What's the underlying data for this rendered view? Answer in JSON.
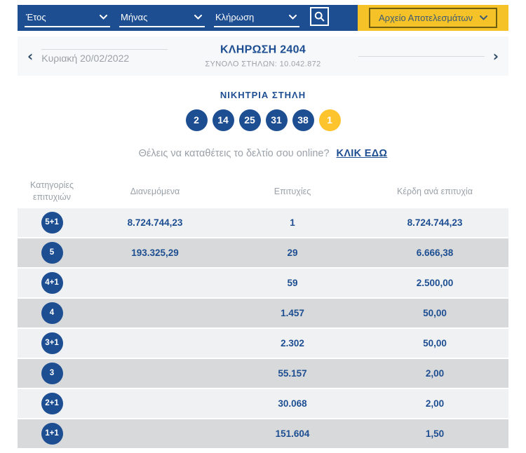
{
  "colors": {
    "brand_blue": "#1d4e92",
    "brand_yellow": "#f5c228",
    "joker_yellow": "#fdc42d",
    "row_light": "#f0f1f2",
    "row_dark": "#d8d9da",
    "muted_gray": "#9ba1a8"
  },
  "filters": {
    "year_label": "Έτος",
    "month_label": "Μήνας",
    "draw_label": "Κλήρωση",
    "archive_button_label": "Αρχείο Αποτελεσμάτων"
  },
  "draw_nav": {
    "title": "ΚΛΗΡΩΣΗ 2404",
    "subtitle": "ΣΥΝΟΛΟ ΣΤΗΛΩΝ: 10.042.872",
    "date": "Κυριακή 20/02/2022",
    "prev_arrow": "‹",
    "next_arrow": "›"
  },
  "winning_column": {
    "title": "ΝΙΚΗΤΡΙΑ ΣΤΗΛΗ",
    "numbers": [
      "2",
      "14",
      "25",
      "31",
      "38"
    ],
    "joker": "1"
  },
  "online_cta": {
    "text": "Θέλεις να καταθέτεις το δελτίο σου online?",
    "link_label": "ΚΛΙΚ ΕΔΩ"
  },
  "results_table": {
    "headers": [
      "Κατηγορίες επιτυχιών",
      "Διανεμόμενα",
      "Επιτυχίες",
      "Κέρδη ανά επιτυχία"
    ],
    "rows": [
      {
        "category": "5+1",
        "distributed": "8.724.744,23",
        "winners": "1",
        "prize": "8.724.744,23"
      },
      {
        "category": "5",
        "distributed": "193.325,29",
        "winners": "29",
        "prize": "6.666,38"
      },
      {
        "category": "4+1",
        "distributed": "",
        "winners": "59",
        "prize": "2.500,00"
      },
      {
        "category": "4",
        "distributed": "",
        "winners": "1.457",
        "prize": "50,00"
      },
      {
        "category": "3+1",
        "distributed": "",
        "winners": "2.302",
        "prize": "50,00"
      },
      {
        "category": "3",
        "distributed": "",
        "winners": "55.157",
        "prize": "2,00"
      },
      {
        "category": "2+1",
        "distributed": "",
        "winners": "30.068",
        "prize": "2,00"
      },
      {
        "category": "1+1",
        "distributed": "",
        "winners": "151.604",
        "prize": "1,50"
      }
    ]
  }
}
